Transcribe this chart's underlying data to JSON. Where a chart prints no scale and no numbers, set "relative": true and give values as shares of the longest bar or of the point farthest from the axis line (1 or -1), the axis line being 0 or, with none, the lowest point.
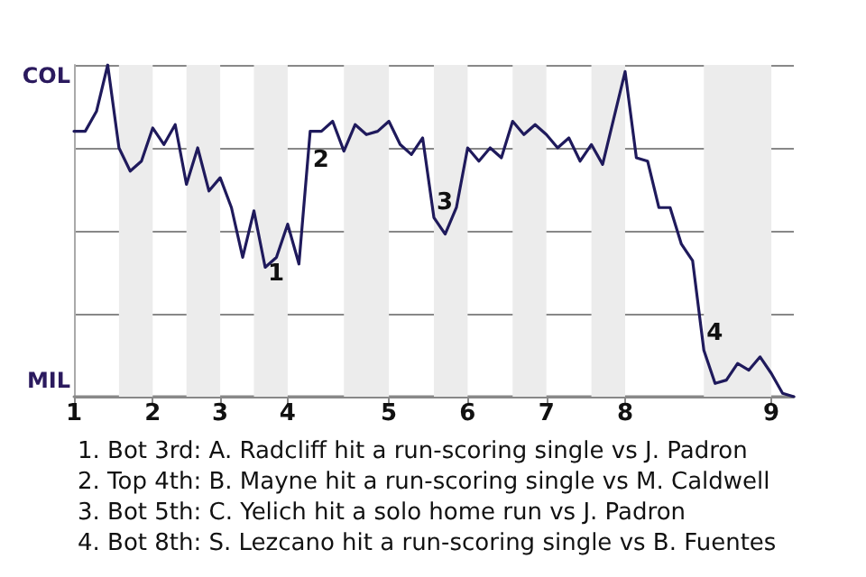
{
  "chart_data": {
    "type": "line",
    "relative": true,
    "categories": [
      "1",
      null,
      null,
      null,
      null,
      null,
      null,
      "2",
      null,
      null,
      null,
      null,
      null,
      "3",
      null,
      null,
      null,
      null,
      null,
      "4",
      null,
      null,
      null,
      null,
      null,
      null,
      null,
      null,
      "5",
      null,
      null,
      null,
      null,
      null,
      null,
      "6",
      null,
      null,
      null,
      null,
      null,
      null,
      "7",
      null,
      null,
      null,
      null,
      null,
      null,
      "8",
      null,
      null,
      null,
      null,
      null,
      null,
      null,
      null,
      null,
      null,
      null,
      null,
      "9",
      null,
      null
    ],
    "series": [
      {
        "color": "#1f1a5c",
        "values": [
          0.8,
          0.8,
          0.86,
          1,
          0.75,
          0.68,
          0.71,
          0.81,
          0.76,
          0.82,
          0.64,
          0.75,
          0.62,
          0.66,
          0.57,
          0.42,
          0.56,
          0.39,
          0.42,
          0.52,
          0.4,
          0.8,
          0.8,
          0.83,
          0.74,
          0.82,
          0.79,
          0.8,
          0.83,
          0.76,
          0.73,
          0.78,
          0.54,
          0.49,
          0.57,
          0.75,
          0.71,
          0.75,
          0.72,
          0.83,
          0.79,
          0.82,
          0.79,
          0.75,
          0.78,
          0.71,
          0.76,
          0.7,
          0.84,
          0.98,
          0.72,
          0.71,
          0.57,
          0.57,
          0.46,
          0.41,
          0.14,
          0.04,
          0.05,
          0.1,
          0.08,
          0.12,
          0.07,
          0.01,
          0
        ]
      }
    ],
    "grid": "y",
    "marker": "none",
    "line_style": "solid",
    "annotations": [
      "COL",
      "MIL",
      "1",
      "2",
      "3",
      "4",
      "1. Bot 3rd: A. Radcliff hit a run-scoring single vs J. Padron",
      "2. Top 4th: B. Mayne hit a run-scoring single vs M. Caldwell",
      "3. Bot 5th: C. Yelich hit a solo home run vs J. Padron",
      "4. Bot 8th: S. Lezcano hit a run-scoring single vs B. Fuentes"
    ]
  }
}
